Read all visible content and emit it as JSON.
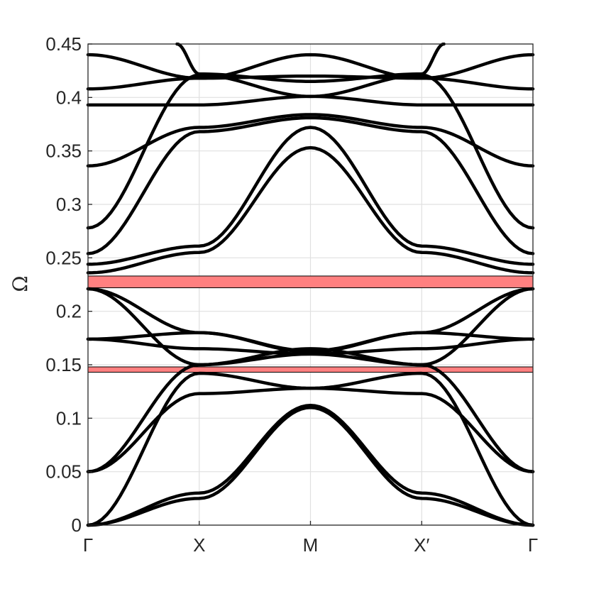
{
  "chart_data": {
    "type": "line",
    "xlabel": "",
    "ylabel": "Ω",
    "ylim": [
      0,
      0.45
    ],
    "grid": true,
    "x_ticks": [
      "Γ",
      "X",
      "M",
      "X′",
      "Γ"
    ],
    "y_ticks": [
      "0",
      "0.05",
      "0.1",
      "0.15",
      "0.2",
      "0.25",
      "0.3",
      "0.35",
      "0.4",
      "0.45"
    ],
    "y_tick_values": [
      0,
      0.05,
      0.1,
      0.15,
      0.2,
      0.25,
      0.3,
      0.35,
      0.4,
      0.45
    ],
    "band_gaps": [
      {
        "ymin": 0.222,
        "ymax": 0.233,
        "color": "#ff8080"
      },
      {
        "ymin": 0.143,
        "ymax": 0.148,
        "color": "#ff8080"
      }
    ],
    "line_color": "#000000",
    "series": [
      {
        "values": [
          [
            0,
            0.0
          ],
          [
            1,
            0.025
          ],
          [
            2,
            0.11
          ],
          [
            3,
            0.025
          ],
          [
            4,
            0.0
          ]
        ]
      },
      {
        "values": [
          [
            0,
            0.0
          ],
          [
            1,
            0.03
          ],
          [
            2,
            0.112
          ],
          [
            3,
            0.03
          ],
          [
            4,
            0.0
          ]
        ]
      },
      {
        "values": [
          [
            0,
            0.0
          ],
          [
            1,
            0.142
          ],
          [
            2,
            0.128
          ],
          [
            3,
            0.142
          ],
          [
            4,
            0.0
          ]
        ]
      },
      {
        "values": [
          [
            0,
            0.05
          ],
          [
            1,
            0.123
          ],
          [
            2,
            0.128
          ],
          [
            3,
            0.123
          ],
          [
            4,
            0.05
          ]
        ]
      },
      {
        "values": [
          [
            0,
            0.05
          ],
          [
            1,
            0.15
          ],
          [
            2,
            0.16
          ],
          [
            3,
            0.15
          ],
          [
            4,
            0.05
          ]
        ]
      },
      {
        "values": [
          [
            0,
            0.174
          ],
          [
            1,
            0.165
          ],
          [
            2,
            0.16
          ],
          [
            3,
            0.165
          ],
          [
            4,
            0.174
          ]
        ]
      },
      {
        "values": [
          [
            0,
            0.174
          ],
          [
            1,
            0.18
          ],
          [
            2,
            0.162
          ],
          [
            3,
            0.18
          ],
          [
            4,
            0.174
          ]
        ]
      },
      {
        "values": [
          [
            0,
            0.221
          ],
          [
            1,
            0.18
          ],
          [
            2,
            0.163
          ],
          [
            3,
            0.18
          ],
          [
            4,
            0.221
          ]
        ]
      },
      {
        "values": [
          [
            0,
            0.221
          ],
          [
            1,
            0.15
          ],
          [
            2,
            0.165
          ],
          [
            3,
            0.15
          ],
          [
            4,
            0.221
          ]
        ]
      },
      {
        "values": [
          [
            0,
            0.236
          ],
          [
            1,
            0.255
          ],
          [
            2,
            0.353
          ],
          [
            3,
            0.255
          ],
          [
            4,
            0.236
          ]
        ]
      },
      {
        "values": [
          [
            0,
            0.244
          ],
          [
            1,
            0.261
          ],
          [
            2,
            0.372
          ],
          [
            3,
            0.261
          ],
          [
            4,
            0.244
          ]
        ]
      },
      {
        "values": [
          [
            0,
            0.254
          ],
          [
            1,
            0.368
          ],
          [
            2,
            0.381
          ],
          [
            3,
            0.368
          ],
          [
            4,
            0.254
          ]
        ]
      },
      {
        "values": [
          [
            0,
            0.278
          ],
          [
            1,
            0.421
          ],
          [
            2,
            0.401
          ],
          [
            3,
            0.421
          ],
          [
            4,
            0.278
          ]
        ]
      },
      {
        "values": [
          [
            0,
            0.336
          ],
          [
            1,
            0.372
          ],
          [
            2,
            0.384
          ],
          [
            3,
            0.372
          ],
          [
            4,
            0.336
          ]
        ]
      },
      {
        "values": [
          [
            0,
            0.393
          ],
          [
            1,
            0.393
          ],
          [
            2,
            0.401
          ],
          [
            3,
            0.393
          ],
          [
            4,
            0.393
          ]
        ]
      },
      {
        "values": [
          [
            0,
            0.408
          ],
          [
            1,
            0.418
          ],
          [
            2,
            0.42
          ],
          [
            3,
            0.418
          ],
          [
            4,
            0.408
          ]
        ]
      },
      {
        "values": [
          [
            0,
            0.44
          ],
          [
            1,
            0.418
          ],
          [
            2,
            0.44
          ],
          [
            3,
            0.418
          ],
          [
            4,
            0.44
          ]
        ]
      },
      {
        "values": [
          [
            0.8,
            0.45
          ],
          [
            1,
            0.422
          ],
          [
            2,
            0.415
          ],
          [
            3,
            0.422
          ],
          [
            3.2,
            0.45
          ]
        ]
      }
    ]
  }
}
